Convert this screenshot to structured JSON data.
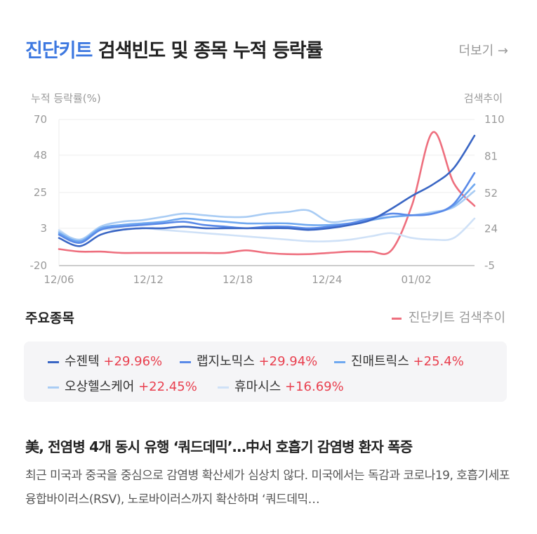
{
  "header": {
    "title_accent": "진단키트",
    "title_rest": "검색빈도 및 종목 누적 등락률",
    "more_label": "더보기 →"
  },
  "chart_data": {
    "type": "line",
    "y_left_label": "누적 등락률(%)",
    "y_right_label": "검색추이",
    "y_left_ticks": [
      "70",
      "48",
      "25",
      "3",
      "-20"
    ],
    "y_right_ticks": [
      "110",
      "81",
      "52",
      "24",
      "-5"
    ],
    "y_left_range": [
      -20,
      70
    ],
    "y_right_range": [
      -5,
      110
    ],
    "x_ticks": [
      "12/06",
      "12/12",
      "12/18",
      "12/24",
      "01/02"
    ],
    "series": [
      {
        "name": "수젠텍",
        "axis": "left",
        "color": "#3a66c4",
        "values": [
          -3,
          -8,
          -1,
          2,
          3,
          3,
          4,
          3,
          3,
          3,
          3,
          3,
          2,
          3,
          5,
          8,
          15,
          23,
          30,
          40,
          60
        ]
      },
      {
        "name": "랩지노믹스",
        "axis": "left",
        "color": "#5a8ae8",
        "values": [
          -1,
          -6,
          2,
          4,
          5,
          6,
          7,
          5,
          4,
          3,
          4,
          4,
          3,
          4,
          6,
          9,
          12,
          11,
          12,
          18,
          37
        ]
      },
      {
        "name": "진매트릭스",
        "axis": "left",
        "color": "#6fa8f0",
        "values": [
          0,
          -5,
          3,
          5,
          6,
          7,
          9,
          8,
          7,
          6,
          6,
          6,
          5,
          5,
          6,
          8,
          10,
          11,
          12,
          17,
          30
        ]
      },
      {
        "name": "오상헬스케어",
        "axis": "left",
        "color": "#a9ccf4",
        "values": [
          1,
          -4,
          4,
          7,
          8,
          10,
          12,
          11,
          10,
          10,
          12,
          13,
          14,
          7,
          8,
          9,
          10,
          11,
          13,
          16,
          26
        ]
      },
      {
        "name": "휴마시스",
        "axis": "left",
        "color": "#cfe1f7",
        "values": [
          2,
          -5,
          2,
          2,
          3,
          2,
          1,
          0,
          -1,
          -2,
          -3,
          -4,
          -5,
          -5,
          -4,
          -2,
          0,
          -3,
          -4,
          -3,
          9
        ]
      },
      {
        "name": "진단키트 검색추이",
        "axis": "right",
        "color": "#ee6f7e",
        "values": [
          8,
          6,
          6,
          5,
          5,
          5,
          5,
          5,
          5,
          7,
          5,
          4,
          4,
          5,
          6,
          6,
          7,
          43,
          100,
          60,
          42
        ]
      }
    ]
  },
  "stocks": {
    "title": "주요종목",
    "search_legend": "진단키트 검색추이",
    "items": [
      {
        "name": "수젠텍",
        "change": "+29.96%",
        "color": "#3a66c4"
      },
      {
        "name": "랩지노믹스",
        "change": "+29.94%",
        "color": "#5a8ae8"
      },
      {
        "name": "진매트릭스",
        "change": "+25.4%",
        "color": "#6fa8f0"
      },
      {
        "name": "오상헬스케어",
        "change": "+22.45%",
        "color": "#a9ccf4"
      },
      {
        "name": "휴마시스",
        "change": "+16.69%",
        "color": "#cfe1f7"
      }
    ]
  },
  "news": {
    "title": "美, 전염병 4개 동시 유행 ‘쿼드데믹’…中서 호흡기 감염병 환자 폭증",
    "body": "최근 미국과 중국을 중심으로 감염병 확산세가 심상치 않다. 미국에서는 독감과 코로나19, 호흡기세포융합바이러스(RSV), 노로바이러스까지 확산하며 ‘쿼드데믹…"
  }
}
